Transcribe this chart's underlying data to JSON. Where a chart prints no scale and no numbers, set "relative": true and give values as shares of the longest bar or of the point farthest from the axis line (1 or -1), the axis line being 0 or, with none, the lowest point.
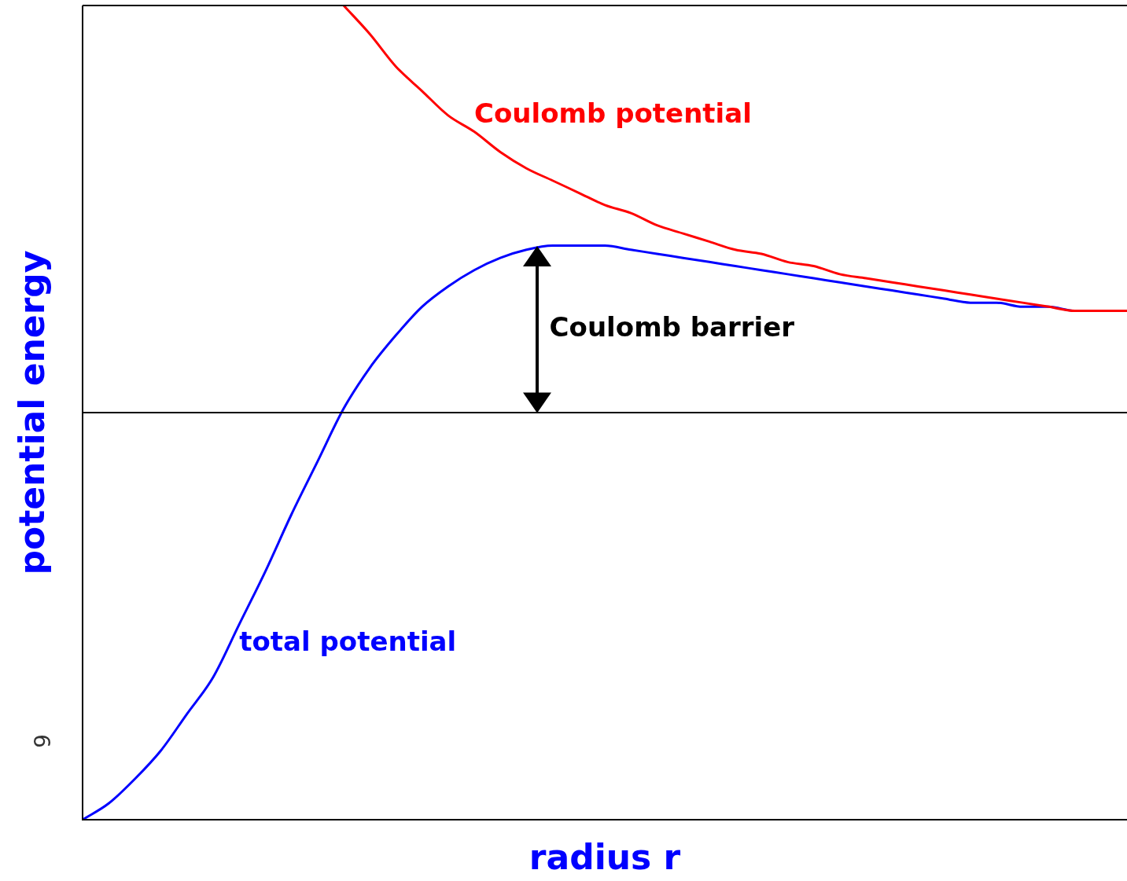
{
  "chart_data": {
    "type": "line",
    "relative": true,
    "xlabel": "radius r",
    "ylabel": "potential energy",
    "categories": [
      null,
      null,
      null,
      null,
      null,
      null,
      null,
      null,
      null,
      null,
      null,
      null,
      null,
      null,
      null,
      null,
      null,
      null,
      null,
      null,
      null,
      null,
      null,
      null,
      null,
      null,
      null,
      null,
      null,
      null,
      null,
      null,
      null,
      null,
      null,
      null,
      null,
      null,
      null,
      null,
      null
    ],
    "series": [
      {
        "name": "total potential",
        "color": "#0000ff",
        "values": [
          -1.0,
          -0.96,
          -0.9,
          -0.83,
          -0.74,
          -0.65,
          -0.52,
          -0.39,
          -0.25,
          -0.12,
          0.01,
          0.11,
          0.19,
          0.26,
          0.31,
          0.35,
          0.38,
          0.4,
          0.41,
          0.41,
          0.41,
          0.4,
          0.39,
          0.38,
          0.37,
          0.36,
          0.35,
          0.34,
          0.33,
          0.32,
          0.31,
          0.3,
          0.29,
          0.28,
          0.27,
          0.27,
          0.26,
          0.26,
          0.25,
          0.25,
          0.25
        ]
      },
      {
        "name": "Coulomb potential",
        "color": "#ff0000",
        "values": [
          null,
          null,
          null,
          null,
          null,
          null,
          null,
          null,
          null,
          null,
          1.0,
          0.93,
          0.85,
          0.79,
          0.73,
          0.69,
          0.64,
          0.6,
          0.57,
          0.54,
          0.51,
          0.49,
          0.46,
          0.44,
          0.42,
          0.4,
          0.39,
          0.37,
          0.36,
          0.34,
          0.33,
          0.32,
          0.31,
          0.3,
          0.29,
          0.28,
          0.27,
          0.26,
          0.25,
          0.25,
          0.25
        ]
      }
    ],
    "ref_lines": [
      {
        "axis": "y",
        "value": 0,
        "color": "#000000"
      }
    ],
    "annotations": [
      "Coulomb barrier",
      "6"
    ],
    "grid": false,
    "legend": false,
    "marker": "none",
    "line_style": "solid"
  }
}
